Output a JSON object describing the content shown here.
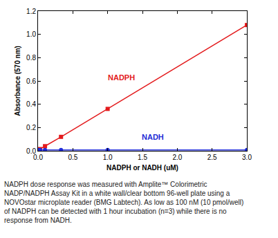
{
  "chart_data": {
    "type": "scatter",
    "x_label": "NADPH or NADH (uM)",
    "y_label": "Absorbance (570 nm)",
    "series": [
      {
        "name": "NADPH",
        "color": "#e31a1c",
        "marker": "square",
        "line_style": "solid",
        "x": [
          0,
          0.03,
          0.1,
          0.33,
          1,
          3
        ],
        "values": [
          0.005,
          0.015,
          0.04,
          0.12,
          0.36,
          1.08
        ]
      },
      {
        "name": "NADH",
        "color": "#1f2bd6",
        "marker": "circle",
        "line_style": "solid",
        "x": [
          0,
          0.03,
          0.1,
          0.33,
          1,
          3
        ],
        "values": [
          0.008,
          0.008,
          0.008,
          0.008,
          0.008,
          0.008
        ]
      }
    ],
    "annotations": [
      {
        "text": "NADPH",
        "x": 1.2,
        "y": 0.63,
        "color": "#e31a1c"
      },
      {
        "text": "NADH",
        "x": 1.65,
        "y": 0.12,
        "color": "#1f2bd6"
      }
    ],
    "xlim": [
      0,
      3
    ],
    "xticks": [
      {
        "value": 0,
        "label": "0.0"
      },
      {
        "value": 0.5,
        "label": "0.5"
      },
      {
        "value": 1,
        "label": "1.0"
      },
      {
        "value": 1.5,
        "label": "1.5"
      },
      {
        "value": 2,
        "label": "2.0"
      },
      {
        "value": 2.5,
        "label": "2.5"
      },
      {
        "value": 3,
        "label": "3.0"
      }
    ],
    "ylim": [
      0,
      1.2
    ],
    "yticks": [
      {
        "value": 0,
        "label": "0.0"
      },
      {
        "value": 0.2,
        "label": "0.2"
      },
      {
        "value": 0.4,
        "label": "0.4"
      },
      {
        "value": 0.6,
        "label": "0.6"
      },
      {
        "value": 0.8,
        "label": "0.8"
      },
      {
        "value": 1,
        "label": "1.0"
      },
      {
        "value": 1.2,
        "label": "1.2"
      }
    ],
    "grid": false,
    "caption": [
      "NADPH dose response was measured with Amplite™ Colorimetric",
      "NADP/NADPH Assay Kit in a white wall/clear bottom 96-well plate using a",
      "NOVOstar microplate reader (BMG Labtech). As low as 100 nM (10 pmol/well)",
      "of NADPH can be detected with 1 hour incubation (n=3) while there is no",
      "response from NADH."
    ]
  }
}
